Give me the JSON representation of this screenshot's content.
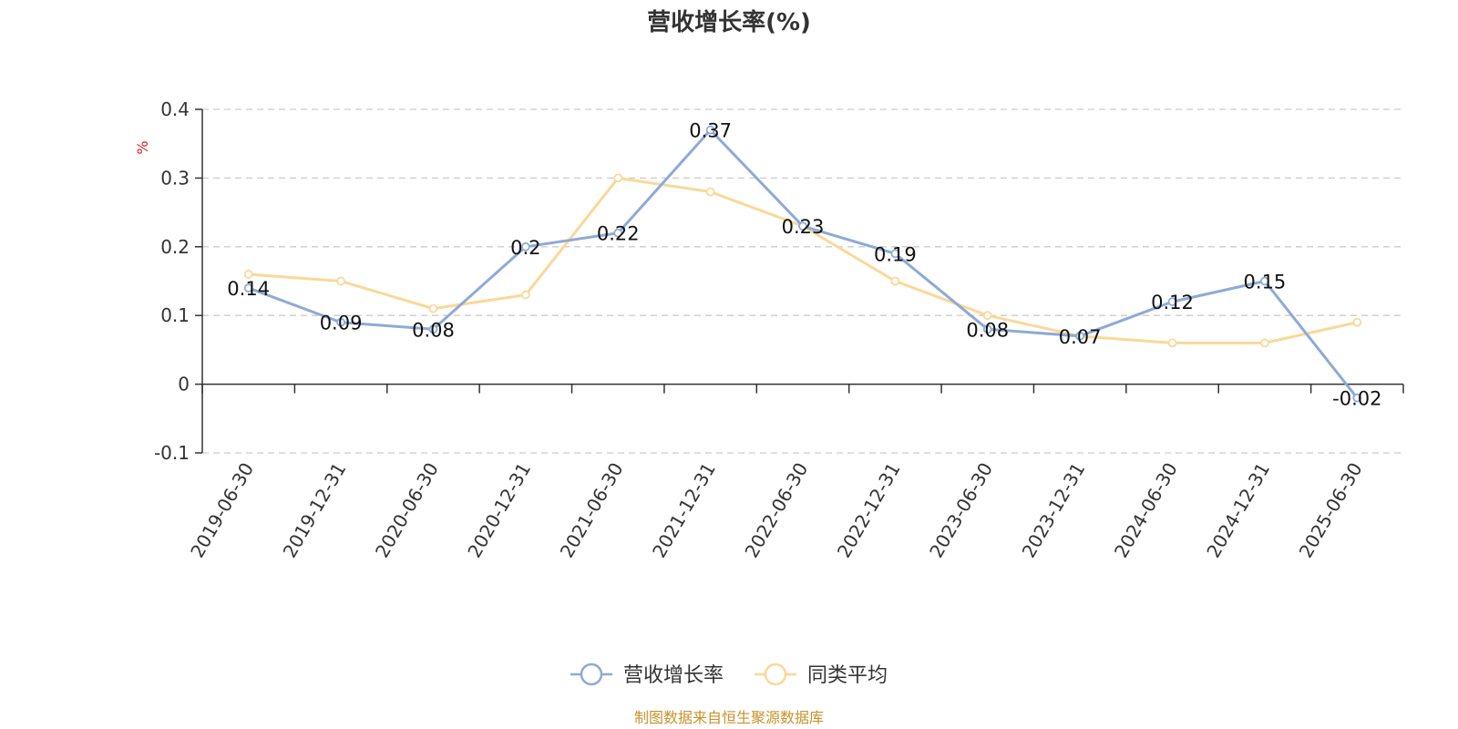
{
  "chart_data": {
    "type": "line",
    "title": "营收增长率(%)",
    "ylabel": "%",
    "ylim": [
      -0.1,
      0.4
    ],
    "yticks": [
      -0.1,
      0,
      0.1,
      0.2,
      0.3,
      0.4
    ],
    "ytick_labels": [
      "-0.1",
      "0",
      "0.1",
      "0.2",
      "0.3",
      "0.4"
    ],
    "grid": true,
    "legend_position": "bottom-center",
    "categories": [
      "2019-06-30",
      "2019-12-31",
      "2020-06-30",
      "2020-12-31",
      "2021-06-30",
      "2021-12-31",
      "2022-06-30",
      "2022-12-31",
      "2023-06-30",
      "2023-12-31",
      "2024-06-30",
      "2024-12-31",
      "2025-06-30"
    ],
    "series": [
      {
        "name": "营收增长率",
        "color": "#8eaad6",
        "values": [
          0.14,
          0.09,
          0.08,
          0.2,
          0.22,
          0.37,
          0.23,
          0.19,
          0.08,
          0.07,
          0.12,
          0.15,
          -0.02
        ],
        "labels": [
          "0.14",
          "0.09",
          "0.08",
          "0.2",
          "0.22",
          "0.37",
          "0.23",
          "0.19",
          "0.08",
          "0.07",
          "0.12",
          "0.15",
          "-0.02"
        ]
      },
      {
        "name": "同类平均",
        "color": "#fad89a",
        "values": [
          0.16,
          0.15,
          0.11,
          0.13,
          0.3,
          0.28,
          0.23,
          0.15,
          0.1,
          0.07,
          0.06,
          0.06,
          0.09
        ]
      }
    ],
    "source_note": "制图数据来自恒生聚源数据库",
    "colors": {
      "source": "#c8922b",
      "unit": "#e02020",
      "grid": "#cccccc",
      "axis": "#333333"
    }
  }
}
